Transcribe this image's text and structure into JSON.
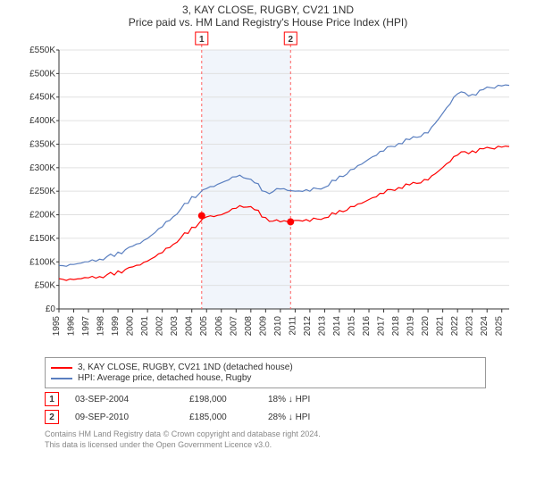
{
  "chart": {
    "title_line1": "3, KAY CLOSE, RUGBY, CV21 1ND",
    "title_line2": "Price paid vs. HM Land Registry's House Price Index (HPI)",
    "type": "line",
    "x_years": [
      1995,
      1996,
      1997,
      1998,
      1999,
      2000,
      2001,
      2002,
      2003,
      2004,
      2005,
      2006,
      2007,
      2008,
      2009,
      2010,
      2011,
      2012,
      2013,
      2014,
      2015,
      2016,
      2017,
      2018,
      2019,
      2020,
      2021,
      2022,
      2023,
      2024,
      2025
    ],
    "ylim": [
      0,
      550000
    ],
    "ytick_step": 50000,
    "ytick_prefix": "£",
    "ytick_suffix": "K",
    "xlim": [
      1995,
      2025.5
    ],
    "background_color": "#ffffff",
    "grid_color": "#e0e0e0",
    "shade_range": [
      2004.67,
      2010.69
    ],
    "shade_color": "#e8eef8",
    "series": [
      {
        "name": "3, KAY CLOSE, RUGBY, CV21 1ND (detached house)",
        "color": "#ff0000",
        "values": [
          62000,
          63000,
          66000,
          70000,
          78000,
          88000,
          102000,
          120000,
          145000,
          170000,
          195000,
          200000,
          215000,
          220000,
          190000,
          185000,
          188000,
          188000,
          195000,
          205000,
          218000,
          232000,
          248000,
          258000,
          265000,
          275000,
          300000,
          330000,
          335000,
          340000,
          345000
        ]
      },
      {
        "name": "HPI: Average price, detached house, Rugby",
        "color": "#5a7fc0",
        "values": [
          90000,
          95000,
          100000,
          108000,
          118000,
          132000,
          150000,
          175000,
          205000,
          235000,
          255000,
          268000,
          282000,
          278000,
          245000,
          255000,
          250000,
          252000,
          260000,
          278000,
          298000,
          318000,
          338000,
          352000,
          362000,
          375000,
          415000,
          460000,
          455000,
          468000,
          475000
        ]
      }
    ],
    "markers": [
      {
        "id": "1",
        "x": 2004.67,
        "y": 198000
      },
      {
        "id": "2",
        "x": 2010.69,
        "y": 185000
      }
    ],
    "marker_box_stroke": "#ff0000",
    "axis_color": "#333333",
    "tick_fontsize": 10,
    "title_fontsize": 12
  },
  "legend": {
    "items": [
      {
        "color": "#ff0000",
        "label": "3, KAY CLOSE, RUGBY, CV21 1ND (detached house)"
      },
      {
        "color": "#5a7fc0",
        "label": "HPI: Average price, detached house, Rugby"
      }
    ]
  },
  "transactions": [
    {
      "marker": "1",
      "date": "03-SEP-2004",
      "price": "£198,000",
      "diff": "18% ↓ HPI"
    },
    {
      "marker": "2",
      "date": "09-SEP-2010",
      "price": "£185,000",
      "diff": "28% ↓ HPI"
    }
  ],
  "footer": {
    "line1": "Contains HM Land Registry data © Crown copyright and database right 2024.",
    "line2": "This data is licensed under the Open Government Licence v3.0."
  }
}
